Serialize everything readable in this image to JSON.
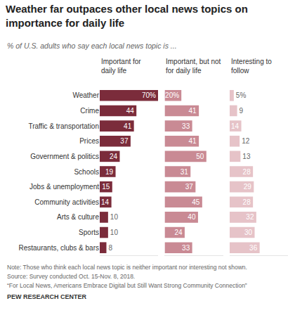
{
  "chart_data": {
    "type": "bar",
    "orientation": "horizontal",
    "title": "Weather far outpaces other local news topics on importance for daily life",
    "subtitle": "% of U.S. adults who say each local news topic is ...",
    "categories": [
      "Weather",
      "Crime",
      "Traffic & transportation",
      "Prices",
      "Government & politics",
      "Schools",
      "Jobs & unemployment",
      "Community activities",
      "Arts & culture",
      "Sports",
      "Restaurants, clubs & bars"
    ],
    "series": [
      {
        "name": "Important for daily life",
        "color": "#7b2c3b",
        "values": [
          70,
          44,
          41,
          37,
          24,
          19,
          15,
          14,
          10,
          10,
          8
        ],
        "value_labels": [
          "70%",
          "44",
          "41",
          "37",
          "24",
          "19",
          "15",
          "14",
          "10",
          "10",
          "8"
        ]
      },
      {
        "name": "Important, but not for daily life",
        "color": "#c98a94",
        "values": [
          20,
          41,
          33,
          41,
          50,
          31,
          37,
          45,
          40,
          24,
          33
        ],
        "value_labels": [
          "20%",
          "41",
          "33",
          "41",
          "50",
          "31",
          "37",
          "45",
          "40",
          "24",
          "33"
        ]
      },
      {
        "name": "Interesting to follow",
        "color": "#e6c3c8",
        "values": [
          5,
          9,
          14,
          12,
          13,
          28,
          29,
          28,
          32,
          30,
          36
        ],
        "value_labels": [
          "5%",
          "9",
          "14",
          "12",
          "13",
          "28",
          "29",
          "28",
          "32",
          "30",
          "36"
        ]
      }
    ],
    "xlim": [
      0,
      70
    ],
    "data_labels": true,
    "tick_labels": "y",
    "grid": false,
    "annotations": [
      "Note: Those who think each local news topic is neither important nor interesting not shown.",
      "Source: Survey conducted Oct. 15-Nov. 8, 2018.",
      "“For Local News, Americans Embrace Digital but Still Want Strong Community Connection”",
      "PEW RESEARCH CENTER"
    ]
  }
}
